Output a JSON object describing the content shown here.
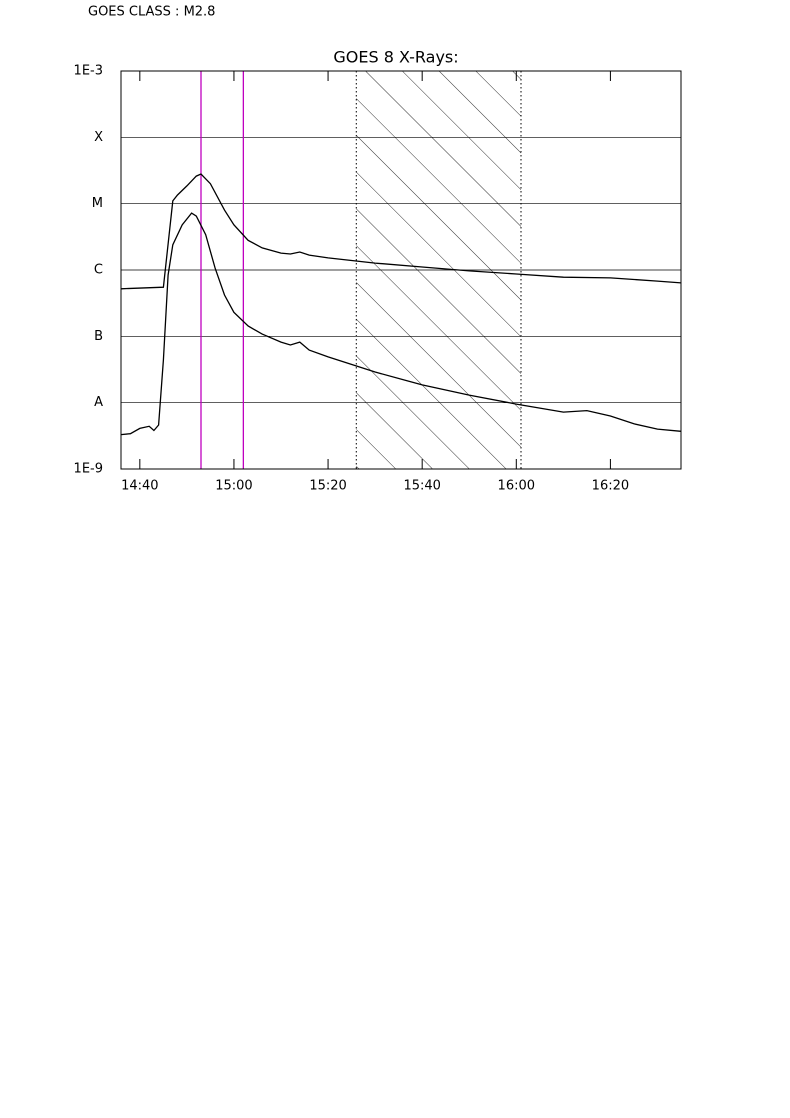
{
  "chart_data": {
    "type": "line",
    "annotation": "GOES CLASS : M2.8",
    "title": "GOES 8 X-Rays:",
    "log_y": true,
    "grid": true,
    "ylim": [
      1e-09,
      0.001
    ],
    "yticks": [
      {
        "value": 1e-09,
        "label": "1E-9"
      },
      {
        "value": 1e-08,
        "label": "A"
      },
      {
        "value": 1e-07,
        "label": "B"
      },
      {
        "value": 1e-06,
        "label": "C"
      },
      {
        "value": 1e-05,
        "label": "M"
      },
      {
        "value": 0.0001,
        "label": "X"
      },
      {
        "value": 0.001,
        "label": "1E-3"
      }
    ],
    "xlim": [
      "14:36",
      "16:35"
    ],
    "xticks": [
      "14:40",
      "15:00",
      "15:20",
      "15:40",
      "16:00",
      "16:20"
    ],
    "vlines": {
      "color": "#c000c0",
      "x": [
        "14:53",
        "15:02"
      ]
    },
    "hatched_region": [
      "15:26",
      "16:01"
    ],
    "series": [
      {
        "color": "#000000",
        "x": [
          "14:36",
          "14:45",
          "14:47",
          "14:48",
          "14:50",
          "14:52",
          "14:53",
          "14:55",
          "14:58",
          "15:00",
          "15:03",
          "15:06",
          "15:10",
          "15:12",
          "15:14",
          "15:16",
          "15:20",
          "15:30",
          "15:40",
          "15:50",
          "16:00",
          "16:10",
          "16:20",
          "16:30",
          "16:35"
        ],
        "values": [
          5.2e-07,
          5.5e-07,
          1.1e-05,
          1.35e-05,
          1.85e-05,
          2.6e-05,
          2.8e-05,
          2e-05,
          8e-06,
          4.8e-06,
          2.8e-06,
          2.15e-06,
          1.8e-06,
          1.74e-06,
          1.87e-06,
          1.68e-06,
          1.52e-06,
          1.27e-06,
          1.11e-06,
          9.7e-07,
          8.7e-07,
          7.8e-07,
          7.6e-07,
          6.8e-07,
          6.4e-07
        ]
      },
      {
        "color": "#000000",
        "x": [
          "14:36",
          "14:38",
          "14:40",
          "14:42",
          "14:43",
          "14:44",
          "14:45",
          "14:46",
          "14:47",
          "14:49",
          "14:51",
          "14:52",
          "14:54",
          "14:56",
          "14:58",
          "15:00",
          "15:03",
          "15:06",
          "15:10",
          "15:12",
          "15:14",
          "15:16",
          "15:20",
          "15:30",
          "15:40",
          "15:50",
          "16:00",
          "16:10",
          "16:15",
          "16:20",
          "16:25",
          "16:30",
          "16:35"
        ],
        "values": [
          3.3e-09,
          3.4e-09,
          4.1e-09,
          4.4e-09,
          3.8e-09,
          4.6e-09,
          4.4e-08,
          8.4e-07,
          2.4e-06,
          4.8e-06,
          7.2e-06,
          6.5e-06,
          3.4e-06,
          1.07e-06,
          4.2e-07,
          2.3e-07,
          1.43e-07,
          1.08e-07,
          8.2e-08,
          7.4e-08,
          8.2e-08,
          6.2e-08,
          4.9e-08,
          2.9e-08,
          1.85e-08,
          1.3e-08,
          9.5e-09,
          7.2e-09,
          7.6e-09,
          6.3e-09,
          4.8e-09,
          4e-09,
          3.7e-09
        ]
      }
    ]
  }
}
